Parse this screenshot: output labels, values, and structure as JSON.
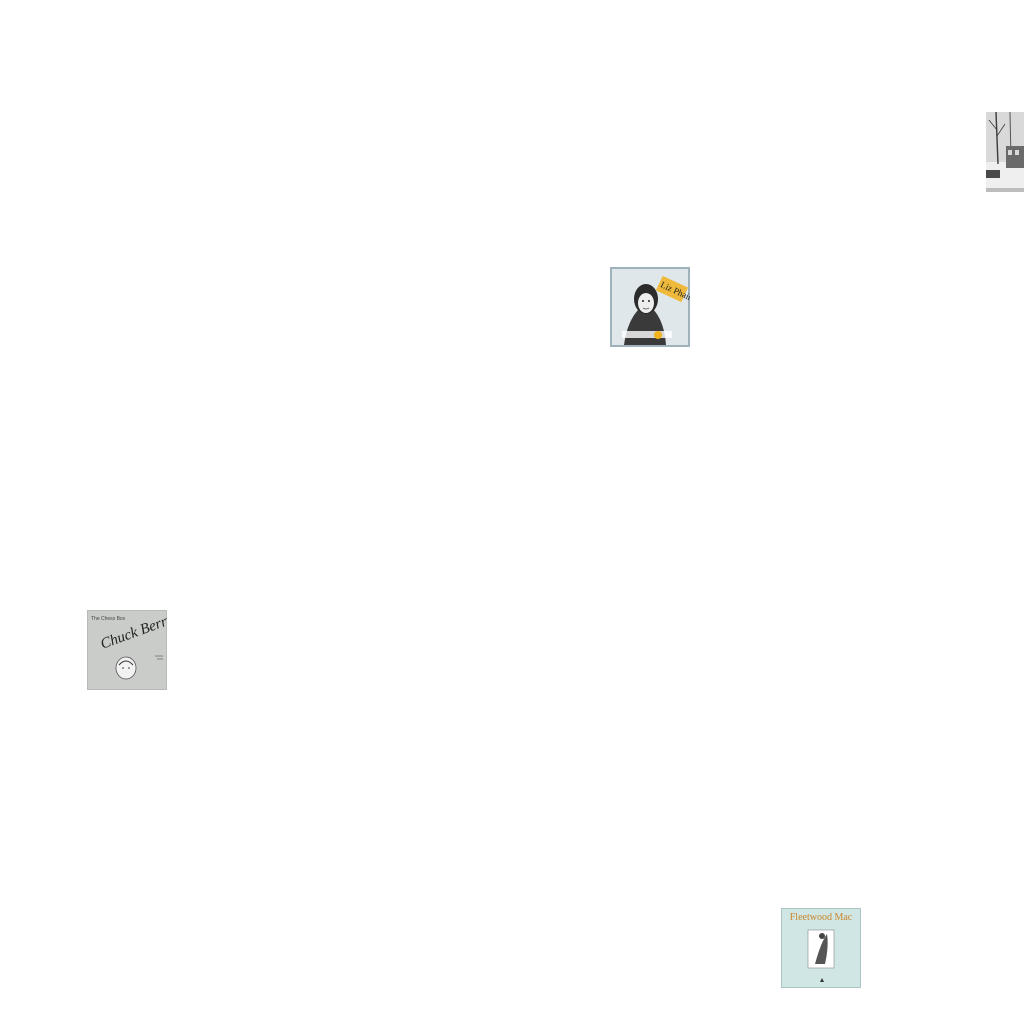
{
  "albums": [
    {
      "id": "chuck-berry",
      "cover_text": [
        "The Chess Box",
        "Chuck Berry"
      ],
      "colors": {
        "background": "#c9ccc9",
        "ink": "#222222"
      }
    },
    {
      "id": "liz-phair",
      "cover_text": [
        "Liz Phair"
      ],
      "colors": {
        "background": "#dfe7ea",
        "accent": "#f2b21c",
        "frame": "#9fb2bb"
      }
    },
    {
      "id": "fleetwood-mac",
      "cover_text": [
        "Fleetwood Mac"
      ],
      "colors": {
        "background": "#cfe6e4",
        "title": "#c9862b"
      }
    },
    {
      "id": "winter-scene",
      "cover_text": [],
      "colors": {
        "background": "#d9d9d9",
        "ink": "#3b3b3b"
      }
    }
  ]
}
